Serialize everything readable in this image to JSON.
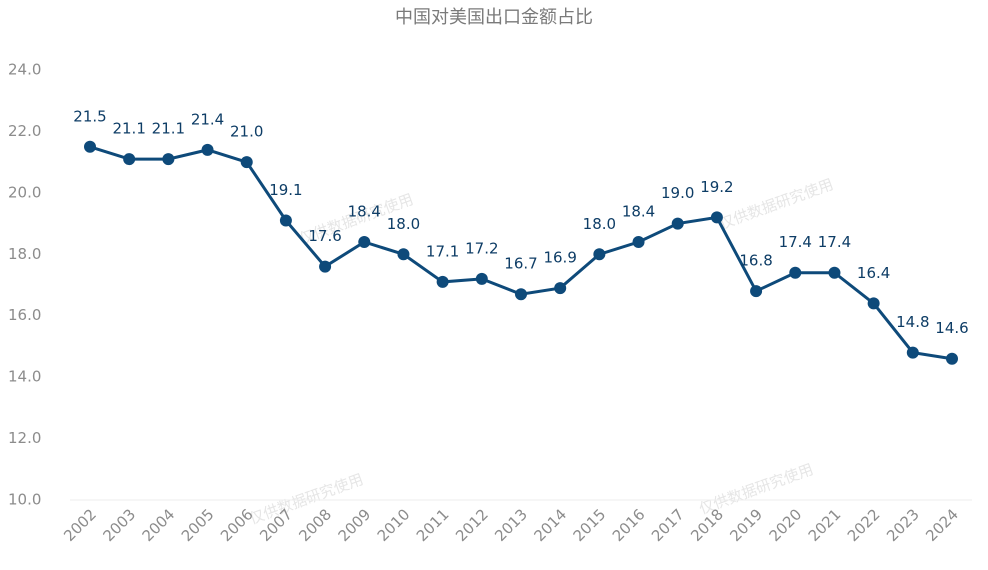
{
  "chart_data": {
    "type": "line",
    "title": "中国对美国出口金额占比",
    "watermark": "仅供数据研究使用",
    "categories": [
      "2002",
      "2003",
      "2004",
      "2005",
      "2006",
      "2007",
      "2008",
      "2009",
      "2010",
      "2011",
      "2012",
      "2013",
      "2014",
      "2015",
      "2016",
      "2017",
      "2018",
      "2019",
      "2020",
      "2021",
      "2022",
      "2023",
      "2024"
    ],
    "series": [
      {
        "name": "中国对美国出口金额占比",
        "color": "#0e4a7a",
        "values": [
          21.5,
          21.1,
          21.1,
          21.4,
          21.0,
          19.1,
          17.6,
          18.4,
          18.0,
          17.1,
          17.2,
          16.7,
          16.9,
          18.0,
          18.4,
          19.0,
          19.2,
          16.8,
          17.4,
          17.4,
          16.4,
          14.8,
          14.6
        ],
        "value_labels": [
          "21.5",
          "21.1",
          "21.1",
          "21.4",
          "21.0",
          "19.1",
          "17.6",
          "18.4",
          "18.0",
          "17.1",
          "17.2",
          "16.7",
          "16.9",
          "18.0",
          "18.4",
          "19.0",
          "19.2",
          "16.8",
          "17.4",
          "17.4",
          "16.4",
          "14.8",
          "14.6"
        ]
      }
    ],
    "ylim": [
      10,
      24
    ],
    "yticks": [
      {
        "value": 10,
        "label": "10.0"
      },
      {
        "value": 12,
        "label": "12.0"
      },
      {
        "value": 14,
        "label": "14.0"
      },
      {
        "value": 16,
        "label": "16.0"
      },
      {
        "value": 18,
        "label": "18.0"
      },
      {
        "value": 20,
        "label": "20.0"
      },
      {
        "value": 22,
        "label": "22.0"
      },
      {
        "value": 24,
        "label": "24.0"
      }
    ],
    "grid": false
  }
}
